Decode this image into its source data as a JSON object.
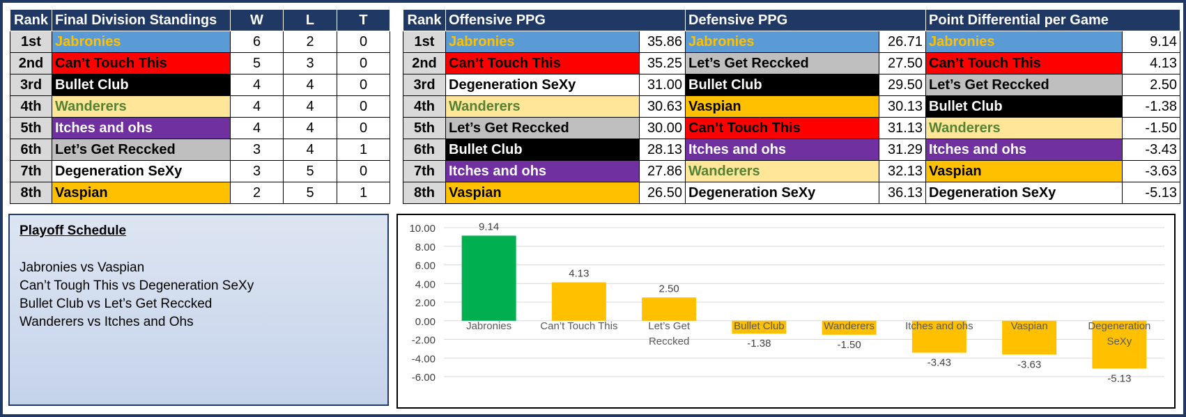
{
  "colors": {
    "header_bg": "#1f3864",
    "positive_bar": "#00b050",
    "other_bar": "#ffc000"
  },
  "teams": {
    "Jabronies": {
      "bg": "#5b9bd5",
      "fg": "#ffc000"
    },
    "Can’t Touch This": {
      "bg": "#ff0000",
      "fg": "#000000"
    },
    "Bullet Club": {
      "bg": "#000000",
      "fg": "#ffffff"
    },
    "Wanderers": {
      "bg": "#ffe699",
      "fg": "#548235"
    },
    "Itches and ohs": {
      "bg": "#7030a0",
      "fg": "#ffffff"
    },
    "Let’s Get Reccked": {
      "bg": "#bfbfbf",
      "fg": "#000000"
    },
    "Degeneration SeXy": {
      "bg": "#ffffff",
      "fg": "#000000"
    },
    "Vaspian": {
      "bg": "#ffc000",
      "fg": "#000000"
    }
  },
  "standings": {
    "headers": {
      "rank": "Rank",
      "title": "Final Division Standings",
      "w": "W",
      "l": "L",
      "t": "T"
    },
    "rows": [
      {
        "rank": "1st",
        "team": "Jabronies",
        "w": "6",
        "l": "2",
        "t": "0"
      },
      {
        "rank": "2nd",
        "team": "Can’t Touch This",
        "w": "5",
        "l": "3",
        "t": "0"
      },
      {
        "rank": "3rd",
        "team": "Bullet Club",
        "w": "4",
        "l": "4",
        "t": "0"
      },
      {
        "rank": "4th",
        "team": "Wanderers",
        "w": "4",
        "l": "4",
        "t": "0"
      },
      {
        "rank": "5th",
        "team": "Itches and ohs",
        "w": "4",
        "l": "4",
        "t": "0"
      },
      {
        "rank": "6th",
        "team": "Let’s Get Reccked",
        "w": "3",
        "l": "4",
        "t": "1"
      },
      {
        "rank": "7th",
        "team": "Degeneration SeXy",
        "w": "3",
        "l": "5",
        "t": "0"
      },
      {
        "rank": "8th",
        "team": "Vaspian",
        "w": "2",
        "l": "5",
        "t": "1"
      }
    ]
  },
  "ppg": {
    "headers": {
      "rank": "Rank",
      "off": "Offensive PPG",
      "def": "Defensive PPG",
      "diff": "Point Differential per Game"
    },
    "rows": [
      {
        "rank": "1st",
        "off_team": "Jabronies",
        "off_val": "35.86",
        "def_team": "Jabronies",
        "def_val": "26.71",
        "diff_team": "Jabronies",
        "diff_val": "9.14"
      },
      {
        "rank": "2nd",
        "off_team": "Can’t Touch This",
        "off_val": "35.25",
        "def_team": "Let’s Get Reccked",
        "def_val": "27.50",
        "diff_team": "Can’t Touch This",
        "diff_val": "4.13"
      },
      {
        "rank": "3rd",
        "off_team": "Degeneration SeXy",
        "off_val": "31.00",
        "def_team": "Bullet Club",
        "def_val": "29.50",
        "diff_team": "Let’s Get Reccked",
        "diff_val": "2.50"
      },
      {
        "rank": "4th",
        "off_team": "Wanderers",
        "off_val": "30.63",
        "def_team": "Vaspian",
        "def_val": "30.13",
        "diff_team": "Bullet Club",
        "diff_val": "-1.38"
      },
      {
        "rank": "5th",
        "off_team": "Let’s Get Reccked",
        "off_val": "30.00",
        "def_team": "Can’t Touch This",
        "def_val": "31.13",
        "diff_team": "Wanderers",
        "diff_val": "-1.50"
      },
      {
        "rank": "6th",
        "off_team": "Bullet Club",
        "off_val": "28.13",
        "def_team": "Itches and ohs",
        "def_val": "31.29",
        "diff_team": "Itches and ohs",
        "diff_val": "-3.43"
      },
      {
        "rank": "7th",
        "off_team": "Itches and ohs",
        "off_val": "27.86",
        "def_team": "Wanderers",
        "def_val": "32.13",
        "diff_team": "Vaspian",
        "diff_val": "-3.63"
      },
      {
        "rank": "8th",
        "off_team": "Vaspian",
        "off_val": "26.50",
        "def_team": "Degeneration SeXy",
        "def_val": "36.13",
        "diff_team": "Degeneration SeXy",
        "diff_val": "-5.13"
      }
    ]
  },
  "schedule": {
    "title": "Playoff Schedule",
    "games": [
      "Jabronies vs Vaspian",
      "Can’t Tough This vs Degeneration SeXy",
      "Bullet Club vs Let’s Get Reccked",
      "Wanderers vs Itches and Ohs"
    ]
  },
  "chart_data": {
    "type": "bar",
    "title": "",
    "xlabel": "",
    "ylabel": "",
    "categories": [
      "Jabronies",
      "Can’t Touch This",
      "Let’s Get Reccked",
      "Bullet Club",
      "Wanderers",
      "Itches and ohs",
      "Vaspian",
      "Degeneration SeXy"
    ],
    "category_lines": [
      [
        "Jabronies"
      ],
      [
        "Can’t Touch This"
      ],
      [
        "Let’s Get",
        "Reccked"
      ],
      [
        "Bullet Club"
      ],
      [
        "Wanderers"
      ],
      [
        "Itches and ohs"
      ],
      [
        "Vaspian"
      ],
      [
        "Degeneration",
        "SeXy"
      ]
    ],
    "values": [
      9.14,
      4.13,
      2.5,
      -1.38,
      -1.5,
      -3.43,
      -3.63,
      -5.13
    ],
    "value_labels": [
      "9.14",
      "4.13",
      "2.50",
      "-1.38",
      "-1.50",
      "-3.43",
      "-3.63",
      "-5.13"
    ],
    "ylim": [
      -6,
      10
    ],
    "yticks": [
      -6,
      -4,
      -2,
      0,
      2,
      4,
      6,
      8,
      10
    ],
    "ytick_labels": [
      "-6.00",
      "-4.00",
      "-2.00",
      "0.00",
      "2.00",
      "4.00",
      "6.00",
      "8.00",
      "10.00"
    ],
    "grid": true,
    "legend": "none"
  }
}
